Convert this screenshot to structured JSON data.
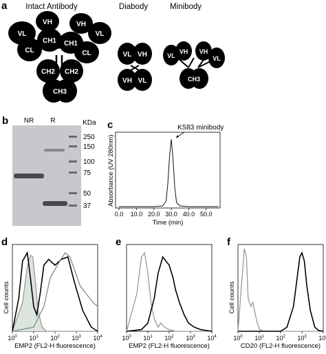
{
  "panels": {
    "a": {
      "label": "a",
      "titles": {
        "intact": "Intact Antibody",
        "diabody": "Diabody",
        "minibody": "Minibody"
      }
    },
    "b": {
      "label": "b",
      "lanes": {
        "nr": "NR",
        "r": "R"
      },
      "kda_label": "KDa",
      "markers": [
        "250",
        "150",
        "100",
        "75",
        "50",
        "37"
      ]
    },
    "c": {
      "label": "c",
      "annotation": "KS83 minibody",
      "ylabel": "Absorbance (UV 280nm)",
      "xlabel": "Time (min)",
      "xticks": [
        "0.0",
        "10.0",
        "20.0",
        "30.0",
        "40.0",
        "50.0"
      ]
    },
    "d": {
      "label": "d",
      "ylabel": "Cell counts",
      "xlabel": "EMP2 (FL2-H fluorescence)"
    },
    "e": {
      "label": "e",
      "xlabel": "EMP2 (FL2-H fluorescence)"
    },
    "f": {
      "label": "f",
      "ylabel": "Cell counts",
      "xlabel": "CD20 (FL2-H fluorescence)"
    }
  },
  "domains": {
    "vl": "VL",
    "vh": "VH",
    "cl": "CL",
    "ch1": "CH1",
    "ch2": "CH2",
    "ch3": "CH3"
  },
  "chart_data": [
    {
      "type": "line",
      "panel": "c",
      "x": [
        0,
        5,
        10,
        15,
        20,
        25,
        27,
        28,
        29,
        30,
        31,
        32,
        33,
        35,
        40,
        50,
        57
      ],
      "y": [
        0.02,
        0.02,
        0.02,
        0.02,
        0.02,
        0.03,
        0.1,
        0.35,
        0.75,
        1.0,
        0.7,
        0.3,
        0.08,
        0.03,
        0.02,
        0.02,
        0.02
      ],
      "xlim": [
        -2,
        58
      ],
      "ylim": [
        0,
        1.1
      ]
    },
    {
      "type": "line",
      "panel": "d",
      "xscale": "log",
      "xlim": [
        1,
        10000
      ],
      "series": [
        {
          "color": "#999999",
          "fill": "#dbe5dc",
          "x": [
            1,
            3,
            5,
            7,
            9,
            12,
            16,
            25,
            40,
            100,
            10000
          ],
          "y": [
            0,
            0.35,
            0.78,
            0.92,
            0.9,
            0.6,
            0.25,
            0.05,
            0,
            0,
            0
          ]
        },
        {
          "color": "#000000",
          "x": [
            1,
            2,
            3,
            5,
            7,
            10,
            14,
            20,
            30,
            50,
            100,
            200,
            400,
            800,
            2000,
            5000,
            10000
          ],
          "y": [
            0,
            0.4,
            0.85,
            0.95,
            0.65,
            0.3,
            0.2,
            0.45,
            0.8,
            0.87,
            0.8,
            0.87,
            0.9,
            0.6,
            0.25,
            0.05,
            0
          ]
        },
        {
          "color": "#888888",
          "x": [
            1,
            10,
            30,
            60,
            100,
            200,
            300,
            500,
            800,
            1500,
            3000,
            6000,
            10000
          ],
          "y": [
            0,
            0.05,
            0.3,
            0.65,
            0.75,
            0.88,
            0.95,
            0.9,
            0.75,
            0.55,
            0.45,
            0.35,
            0.3
          ]
        }
      ]
    },
    {
      "type": "line",
      "panel": "e",
      "xscale": "log",
      "xlim": [
        1,
        10000
      ],
      "series": [
        {
          "color": "#999999",
          "x": [
            1,
            3,
            5,
            7,
            10,
            14,
            20,
            30,
            40,
            60,
            100,
            200,
            10000
          ],
          "y": [
            0,
            0.45,
            0.9,
            0.95,
            0.7,
            0.35,
            0.15,
            0.05,
            0.1,
            0.05,
            0.02,
            0,
            0
          ]
        },
        {
          "color": "#000000",
          "x": [
            1,
            5,
            10,
            20,
            30,
            50,
            70,
            100,
            150,
            200,
            300,
            500,
            800,
            1500,
            3000,
            10000
          ],
          "y": [
            0,
            0.02,
            0.1,
            0.4,
            0.7,
            0.9,
            0.85,
            0.8,
            0.65,
            0.5,
            0.35,
            0.2,
            0.1,
            0.05,
            0.02,
            0
          ]
        }
      ]
    },
    {
      "type": "line",
      "panel": "f",
      "xscale": "log",
      "xlim": [
        1,
        10000
      ],
      "series": [
        {
          "color": "#999999",
          "x": [
            1,
            1.5,
            2,
            2.5,
            3,
            4,
            5,
            6,
            8,
            10,
            15,
            30,
            10000
          ],
          "y": [
            0,
            0.6,
            1.0,
            0.9,
            0.4,
            0.3,
            0.35,
            0.25,
            0.1,
            0.03,
            0,
            0,
            0
          ]
        },
        {
          "color": "#000000",
          "x": [
            1,
            100,
            200,
            400,
            600,
            800,
            1000,
            1300,
            1700,
            2500,
            4000,
            6000,
            10000
          ],
          "y": [
            0,
            0,
            0.05,
            0.3,
            0.65,
            0.9,
            0.95,
            0.85,
            0.55,
            0.25,
            0.05,
            0.01,
            0
          ]
        }
      ]
    }
  ]
}
